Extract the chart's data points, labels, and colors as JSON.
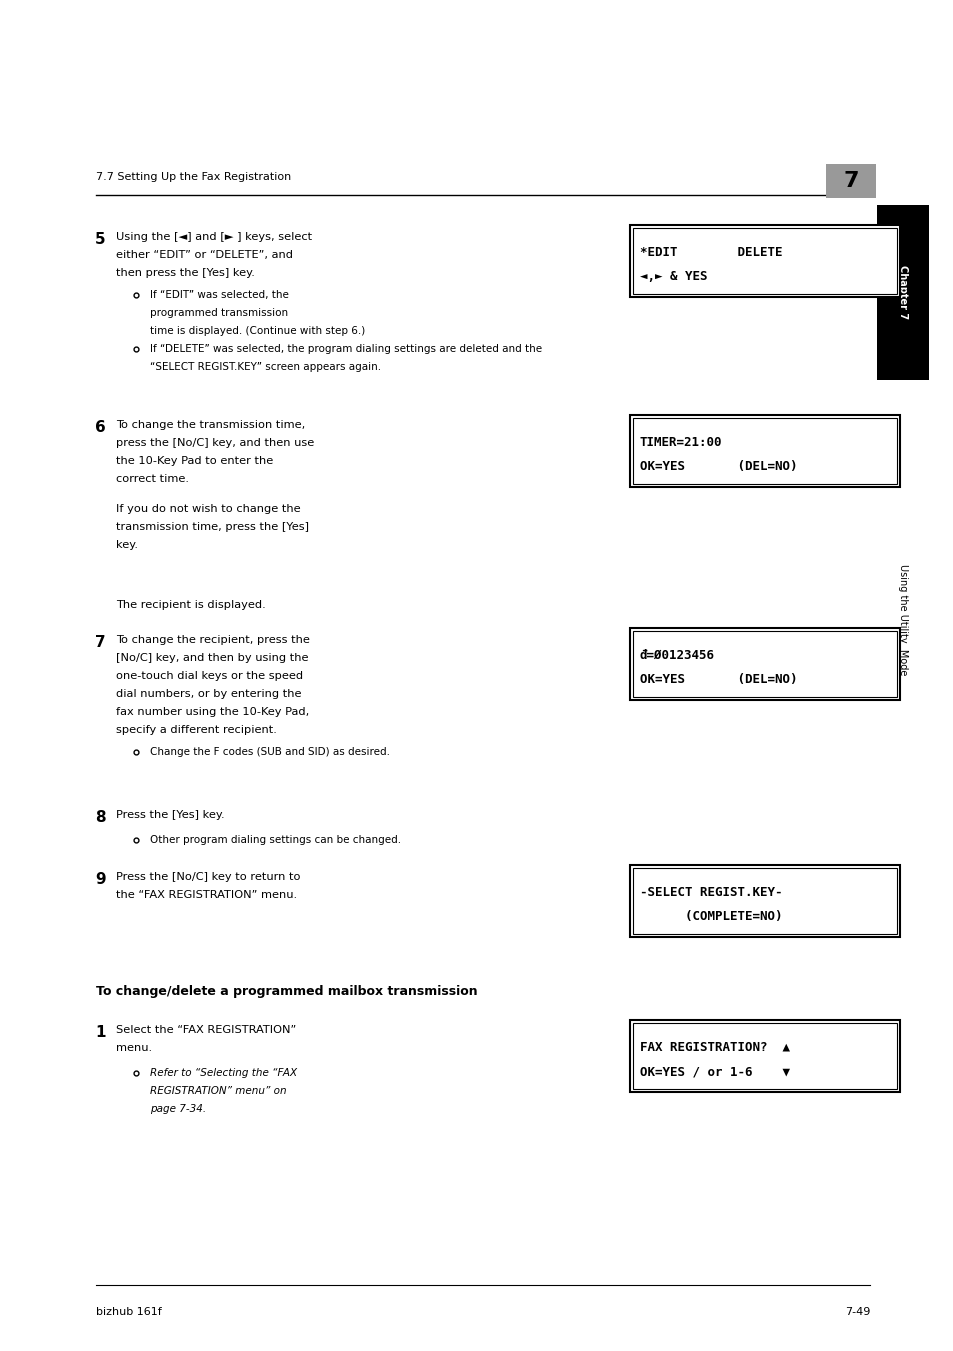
{
  "bg_color": "#ffffff",
  "page_width": 9.54,
  "page_height": 13.51,
  "header_text": "7.7 Setting Up the Fax Registration",
  "footer_left": "bizhub 161f",
  "footer_right": "7-49",
  "screen5_l1": "*EDIT        DELETE",
  "screen5_l2": "◄,► & YES",
  "screen6_l1": "TIMER=21:00",
  "screen6_l2": "OK=YES       (DEL=NO)",
  "screen7_l1": "đ=Ø0123456",
  "screen7_l2": "OK=YES       (DEL=NO)",
  "screen9_l1": "-SELECT REGIST.KEY-",
  "screen9_l2": "      (COMPLETE=NO)",
  "screen1h_l1": "FAX REGISTRATION?  ▲",
  "screen1h_l2": "OK=YES / or 1-6    ▼"
}
